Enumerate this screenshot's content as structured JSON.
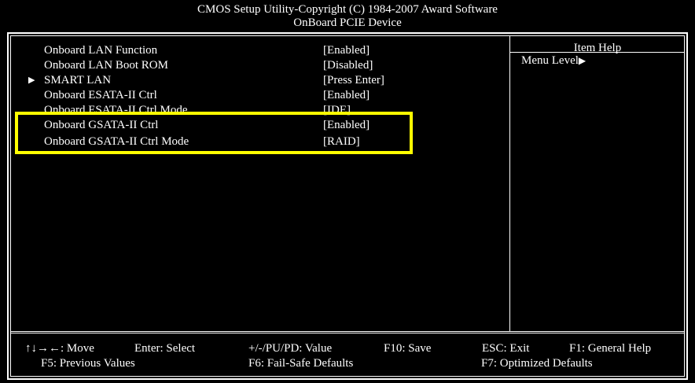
{
  "header": {
    "title": "CMOS Setup Utility-Copyright (C) 1984-2007 Award Software",
    "subtitle": "OnBoard PCIE Device"
  },
  "items": [
    {
      "label": "Onboard LAN Function",
      "value": "[Enabled]",
      "submenu": false
    },
    {
      "label": "Onboard LAN Boot ROM",
      "value": "[Disabled]",
      "submenu": false
    },
    {
      "label": "SMART LAN",
      "value": "[Press Enter]",
      "submenu": true
    },
    {
      "label": "Onboard ESATA-II Ctrl",
      "value": "[Enabled]",
      "submenu": false
    },
    {
      "label": "Onboard ESATA-II Ctrl Mode",
      "value": "[IDE]",
      "submenu": false
    },
    {
      "label": "Onboard GSATA-II Ctrl",
      "value": "[Enabled]",
      "submenu": false
    },
    {
      "label": "Onboard GSATA-II Ctrl Mode",
      "value": "[RAID]",
      "submenu": false
    }
  ],
  "help": {
    "title": "Item Help",
    "menu_level": "Menu Level",
    "menu_level_marker": "▶"
  },
  "footer": {
    "move": "↑↓→←: Move",
    "select": "Enter: Select",
    "value": "+/-/PU/PD: Value",
    "save": "F10: Save",
    "exit": "ESC: Exit",
    "general_help": "F1: General Help",
    "previous": "F5: Previous Values",
    "failsafe": "F6: Fail-Safe Defaults",
    "optimized": "F7: Optimized Defaults"
  },
  "colors": {
    "background": "#000000",
    "text": "#ffffff",
    "highlight": "#ffff00"
  },
  "icons": {
    "submenu": "triangle-right-icon"
  }
}
